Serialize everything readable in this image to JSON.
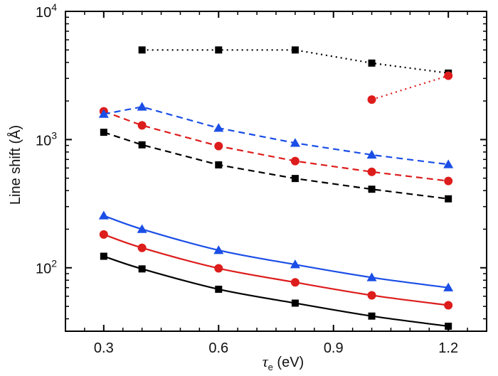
{
  "chart_data": {
    "type": "line",
    "xlabel_var": "τ",
    "xlabel_sub": "e",
    "xlabel_rest": " (eV)",
    "ylabel": "Line shift (Å)",
    "x_scale": "linear",
    "y_scale": "log",
    "xlim": [
      0.2,
      1.3
    ],
    "ylim": [
      32,
      10000
    ],
    "x_ticks": [
      0.3,
      0.6,
      0.9,
      1.2
    ],
    "x_tick_labels": [
      "0.3",
      "0.6",
      "0.9",
      "1.2"
    ],
    "y_ticks": [
      100,
      1000,
      10000
    ],
    "y_tick_labels": [
      {
        "base": "10",
        "exp": "2"
      },
      {
        "base": "10",
        "exp": "3"
      },
      {
        "base": "10",
        "exp": "4"
      }
    ],
    "grid": false,
    "legend": "none",
    "series": [
      {
        "color": "#000000",
        "marker": "square",
        "line": "solid",
        "x": [
          0.3,
          0.4,
          0.6,
          0.8,
          1.0,
          1.2
        ],
        "y": [
          123,
          98,
          68,
          53,
          42,
          35
        ]
      },
      {
        "color": "#dd1c1c",
        "marker": "circle",
        "line": "solid",
        "x": [
          0.3,
          0.4,
          0.6,
          0.8,
          1.0,
          1.2
        ],
        "y": [
          182,
          143,
          99,
          77,
          61,
          51
        ]
      },
      {
        "color": "#1a4ee6",
        "marker": "triangle",
        "line": "solid",
        "x": [
          0.3,
          0.4,
          0.6,
          0.8,
          1.0,
          1.2
        ],
        "y": [
          255,
          200,
          137,
          106,
          84,
          70
        ]
      },
      {
        "color": "#000000",
        "marker": "square",
        "line": "dashed",
        "x": [
          0.3,
          0.4,
          0.6,
          0.8,
          1.0,
          1.2
        ],
        "y": [
          1140,
          910,
          635,
          497,
          410,
          345
        ]
      },
      {
        "color": "#dd1c1c",
        "marker": "circle",
        "line": "dashed",
        "x": [
          0.3,
          0.4,
          0.6,
          0.8,
          1.0,
          1.2
        ],
        "y": [
          1660,
          1290,
          890,
          680,
          560,
          475
        ]
      },
      {
        "color": "#1a4ee6",
        "marker": "triangle",
        "line": "dashed",
        "x": [
          0.3,
          0.4,
          0.6,
          0.8,
          1.0,
          1.2
        ],
        "y": [
          1580,
          1800,
          1230,
          940,
          760,
          640
        ]
      },
      {
        "color": "#000000",
        "marker": "square",
        "line": "dotted",
        "x": [
          0.4,
          0.6,
          0.8,
          1.0,
          1.2
        ],
        "y": [
          5000,
          5000,
          5000,
          3950,
          3300
        ]
      },
      {
        "color": "#dd1c1c",
        "marker": "circle",
        "line": "dotted",
        "x": [
          1.0,
          1.2
        ],
        "y": [
          2050,
          3150
        ]
      }
    ]
  }
}
